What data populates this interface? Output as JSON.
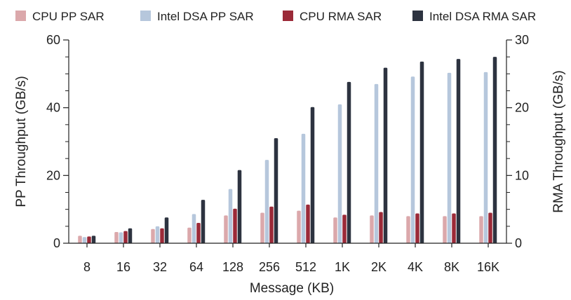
{
  "chart_data": {
    "type": "bar",
    "title": "",
    "xlabel": "Message (KB)",
    "ylabel": "PP Throughput (GB/s)",
    "y2label": "RMA Throughput (GB/s)",
    "categories": [
      "8",
      "16",
      "32",
      "64",
      "128",
      "256",
      "512",
      "1K",
      "2K",
      "4K",
      "8K",
      "16K"
    ],
    "ylim": [
      0,
      60
    ],
    "y2lim": [
      0,
      30
    ],
    "yticks": [
      0,
      20,
      40,
      60
    ],
    "y2ticks": [
      0,
      10,
      20,
      30
    ],
    "legend_position": "top",
    "series": [
      {
        "name": "CPU PP SAR",
        "axis": "left",
        "color": "#dba8ab",
        "values": [
          2.2,
          3.3,
          4.2,
          4.6,
          8.2,
          9.0,
          9.6,
          7.6,
          8.2,
          8.0,
          8.0,
          8.0
        ]
      },
      {
        "name": "Intel DSA PP SAR",
        "axis": "left",
        "color": "#b6c7dc",
        "values": [
          1.8,
          3.2,
          5.0,
          8.6,
          16.0,
          24.6,
          32.3,
          41.0,
          47.0,
          49.2,
          50.3,
          50.5
        ]
      },
      {
        "name": "CPU RMA SAR",
        "axis": "right",
        "color": "#9b2a38",
        "values": [
          1.0,
          1.8,
          2.2,
          3.0,
          5.1,
          5.4,
          5.7,
          4.2,
          4.6,
          4.4,
          4.4,
          4.5
        ]
      },
      {
        "name": "Intel DSA RMA SAR",
        "axis": "right",
        "color": "#2d3340",
        "values": [
          1.1,
          2.2,
          3.8,
          6.4,
          10.8,
          15.5,
          20.1,
          23.8,
          25.9,
          26.8,
          27.2,
          27.5
        ]
      }
    ]
  }
}
